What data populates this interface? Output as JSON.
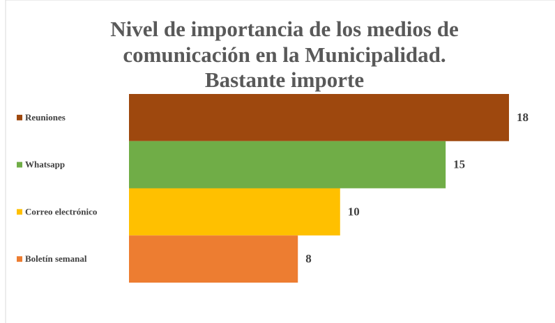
{
  "chart_data": {
    "type": "bar",
    "orientation": "horizontal",
    "title": [
      "Nivel de importancia de los medios de",
      "comunicación en la Municipalidad.",
      "Bastante importe"
    ],
    "categories": [
      "Reuniones",
      "Whatsapp",
      "Correo electrónico",
      "Boletín semanal"
    ],
    "values": [
      18,
      15,
      10,
      8
    ],
    "colors": [
      "#9e480e",
      "#70ad47",
      "#ffc000",
      "#ed7d31"
    ],
    "xlim": [
      0,
      18
    ]
  }
}
